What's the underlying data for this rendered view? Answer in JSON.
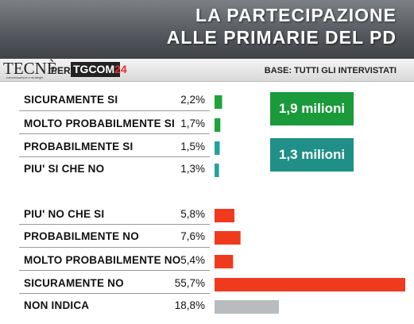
{
  "header": {
    "title_line1": "LA PARTECIPAZIONE",
    "title_line2": "ALLE PRIMARIE DEL PD"
  },
  "branding": {
    "tecne": "TECNÈ",
    "tecne_tagline": "comunicazione e strategie",
    "per": "PER",
    "tgcom": "TGCOM",
    "tgcom_num": "24",
    "base": "BASE: TUTTI GLI INTERVISTATI"
  },
  "colors": {
    "green": "#1fa33a",
    "teal": "#23a29b",
    "red": "#f03a1e",
    "gray": "#b9bcbe"
  },
  "chart_data": {
    "type": "bar",
    "orientation": "horizontal",
    "categories": [
      "SICURAMENTE SI",
      "MOLTO PROBABILMENTE SI",
      "PROBABILMENTE SI",
      "PIU' SI CHE NO",
      "PIU' NO CHE SI",
      "PROBABILMENTE NO",
      "MOLTO PROBABILMENTE NO",
      "SICURAMENTE NO",
      "NON INDICA"
    ],
    "values": [
      2.2,
      1.7,
      1.5,
      1.3,
      5.8,
      7.6,
      5.4,
      55.7,
      18.8
    ],
    "value_labels": [
      "2,2%",
      "1,7%",
      "1,5%",
      "1,3%",
      "5,8%",
      "7,6%",
      "5,4%",
      "55,7%",
      "18,8%"
    ],
    "bar_colors": [
      "green",
      "green",
      "teal",
      "teal",
      "red",
      "red",
      "red",
      "red",
      "gray"
    ],
    "annotations": [
      {
        "text": "1,9 milioni",
        "color": "green"
      },
      {
        "text": "1,3 milioni",
        "color": "teal"
      }
    ]
  }
}
